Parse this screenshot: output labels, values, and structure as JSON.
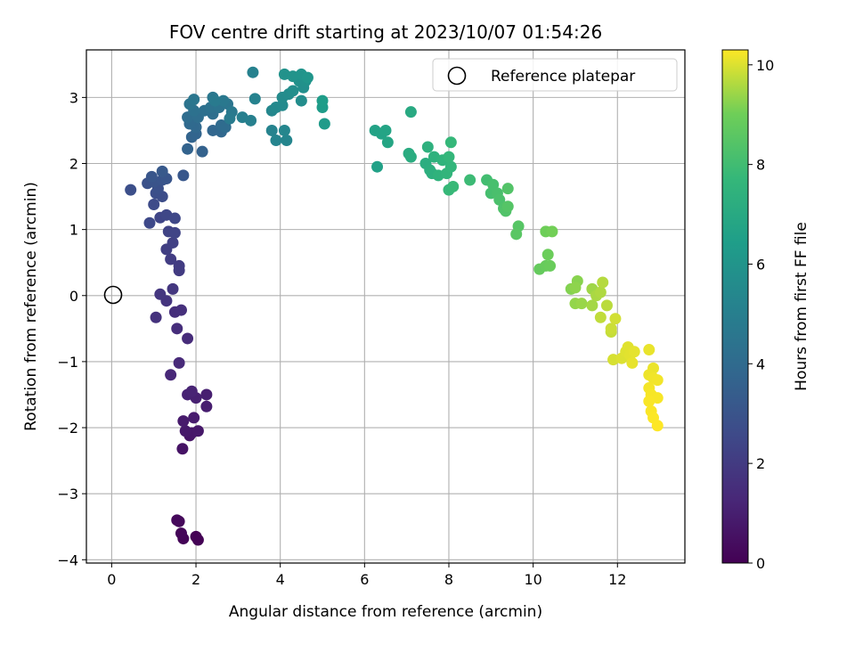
{
  "chart_data": {
    "type": "scatter",
    "title": "FOV centre drift starting at 2023/10/07 01:54:26",
    "xlabel": "Angular distance from reference (arcmin)",
    "ylabel": "Rotation from reference (arcmin)",
    "xlim": [
      -0.6,
      13.6
    ],
    "ylim": [
      -4.05,
      3.72
    ],
    "x_ticks": [
      0,
      2,
      4,
      6,
      8,
      10,
      12
    ],
    "y_ticks": [
      -4,
      -3,
      -2,
      -1,
      0,
      1,
      2,
      3
    ],
    "x_tick_labels": [
      "0",
      "2",
      "4",
      "6",
      "8",
      "10",
      "12"
    ],
    "y_tick_labels": [
      "−4",
      "−3",
      "−2",
      "−1",
      "0",
      "1",
      "2",
      "3"
    ],
    "grid": true,
    "legend": {
      "placement": "top-right",
      "entries": [
        "Reference platepar"
      ]
    },
    "reference_point": {
      "label": "Reference platepar",
      "x": 0,
      "y": 0,
      "marker": "open-circle"
    },
    "colorbar": {
      "label": "Hours from first FF file",
      "colormap": "viridis",
      "range": [
        0,
        10.3
      ],
      "ticks": [
        0,
        2,
        4,
        6,
        8,
        10
      ],
      "tick_labels": [
        "0",
        "2",
        "4",
        "6",
        "8",
        "10"
      ]
    },
    "points": [
      {
        "x": 2.0,
        "y": -3.65,
        "c": 0.0
      },
      {
        "x": 2.05,
        "y": -3.7,
        "c": 0.05
      },
      {
        "x": 1.7,
        "y": -3.68,
        "c": 0.1
      },
      {
        "x": 1.65,
        "y": -3.6,
        "c": 0.15
      },
      {
        "x": 1.6,
        "y": -3.42,
        "c": 0.2
      },
      {
        "x": 1.55,
        "y": -3.4,
        "c": 0.25
      },
      {
        "x": 1.68,
        "y": -2.32,
        "c": 0.6
      },
      {
        "x": 1.85,
        "y": -2.12,
        "c": 0.65
      },
      {
        "x": 1.9,
        "y": -2.08,
        "c": 0.7
      },
      {
        "x": 2.05,
        "y": -2.05,
        "c": 0.75
      },
      {
        "x": 1.75,
        "y": -2.05,
        "c": 0.8
      },
      {
        "x": 1.7,
        "y": -1.9,
        "c": 0.85
      },
      {
        "x": 1.95,
        "y": -1.85,
        "c": 0.9
      },
      {
        "x": 2.25,
        "y": -1.68,
        "c": 0.95
      },
      {
        "x": 2.25,
        "y": -1.5,
        "c": 1.0
      },
      {
        "x": 2.0,
        "y": -1.55,
        "c": 1.05
      },
      {
        "x": 1.8,
        "y": -1.5,
        "c": 1.1
      },
      {
        "x": 1.9,
        "y": -1.45,
        "c": 1.15
      },
      {
        "x": 1.4,
        "y": -1.2,
        "c": 1.3
      },
      {
        "x": 1.6,
        "y": -1.02,
        "c": 1.35
      },
      {
        "x": 1.8,
        "y": -0.65,
        "c": 1.45
      },
      {
        "x": 1.55,
        "y": -0.5,
        "c": 1.5
      },
      {
        "x": 1.5,
        "y": -0.25,
        "c": 1.55
      },
      {
        "x": 1.65,
        "y": -0.22,
        "c": 1.6
      },
      {
        "x": 1.05,
        "y": -0.33,
        "c": 1.65
      },
      {
        "x": 1.3,
        "y": -0.08,
        "c": 1.75
      },
      {
        "x": 1.15,
        "y": 0.02,
        "c": 1.8
      },
      {
        "x": 1.45,
        "y": 0.1,
        "c": 1.85
      },
      {
        "x": 1.6,
        "y": 0.38,
        "c": 2.0
      },
      {
        "x": 1.6,
        "y": 0.45,
        "c": 2.05
      },
      {
        "x": 1.4,
        "y": 0.55,
        "c": 2.1
      },
      {
        "x": 1.3,
        "y": 0.7,
        "c": 2.15
      },
      {
        "x": 1.45,
        "y": 0.8,
        "c": 2.2
      },
      {
        "x": 1.35,
        "y": 0.97,
        "c": 2.3
      },
      {
        "x": 1.5,
        "y": 0.95,
        "c": 2.35
      },
      {
        "x": 1.15,
        "y": 1.18,
        "c": 2.4
      },
      {
        "x": 1.3,
        "y": 1.22,
        "c": 2.45
      },
      {
        "x": 1.5,
        "y": 1.17,
        "c": 2.5
      },
      {
        "x": 0.9,
        "y": 1.1,
        "c": 2.55
      },
      {
        "x": 1.0,
        "y": 1.38,
        "c": 2.6
      },
      {
        "x": 1.2,
        "y": 1.5,
        "c": 2.7
      },
      {
        "x": 1.05,
        "y": 1.55,
        "c": 2.75
      },
      {
        "x": 0.45,
        "y": 1.6,
        "c": 2.8
      },
      {
        "x": 1.1,
        "y": 1.62,
        "c": 2.85
      },
      {
        "x": 0.85,
        "y": 1.7,
        "c": 2.9
      },
      {
        "x": 1.0,
        "y": 1.72,
        "c": 2.95
      },
      {
        "x": 1.2,
        "y": 1.75,
        "c": 3.0
      },
      {
        "x": 1.3,
        "y": 1.77,
        "c": 3.05
      },
      {
        "x": 0.95,
        "y": 1.8,
        "c": 3.1
      },
      {
        "x": 1.7,
        "y": 1.82,
        "c": 3.15
      },
      {
        "x": 1.2,
        "y": 1.88,
        "c": 3.2
      },
      {
        "x": 2.15,
        "y": 2.18,
        "c": 3.6
      },
      {
        "x": 1.8,
        "y": 2.22,
        "c": 3.65
      },
      {
        "x": 1.9,
        "y": 2.4,
        "c": 3.7
      },
      {
        "x": 2.0,
        "y": 2.45,
        "c": 3.75
      },
      {
        "x": 2.4,
        "y": 2.5,
        "c": 3.8
      },
      {
        "x": 2.6,
        "y": 2.48,
        "c": 3.85
      },
      {
        "x": 2.0,
        "y": 2.55,
        "c": 3.9
      },
      {
        "x": 1.85,
        "y": 2.6,
        "c": 3.95
      },
      {
        "x": 2.6,
        "y": 2.58,
        "c": 4.0
      },
      {
        "x": 2.7,
        "y": 2.55,
        "c": 4.05
      },
      {
        "x": 1.8,
        "y": 2.7,
        "c": 4.1
      },
      {
        "x": 2.05,
        "y": 2.7,
        "c": 4.15
      },
      {
        "x": 2.4,
        "y": 2.75,
        "c": 4.2
      },
      {
        "x": 2.2,
        "y": 2.8,
        "c": 4.25
      },
      {
        "x": 1.95,
        "y": 2.8,
        "c": 4.3
      },
      {
        "x": 2.35,
        "y": 2.85,
        "c": 4.35
      },
      {
        "x": 2.55,
        "y": 2.85,
        "c": 4.4
      },
      {
        "x": 1.85,
        "y": 2.9,
        "c": 4.45
      },
      {
        "x": 2.75,
        "y": 2.9,
        "c": 4.5
      },
      {
        "x": 1.95,
        "y": 2.97,
        "c": 4.55
      },
      {
        "x": 2.4,
        "y": 3.0,
        "c": 4.6
      },
      {
        "x": 2.65,
        "y": 2.95,
        "c": 4.65
      },
      {
        "x": 2.85,
        "y": 2.78,
        "c": 4.7
      },
      {
        "x": 2.45,
        "y": 2.95,
        "c": 4.75
      },
      {
        "x": 2.8,
        "y": 2.68,
        "c": 4.8
      },
      {
        "x": 3.1,
        "y": 2.7,
        "c": 5.0
      },
      {
        "x": 3.3,
        "y": 2.65,
        "c": 5.05
      },
      {
        "x": 3.35,
        "y": 3.38,
        "c": 5.1
      },
      {
        "x": 3.4,
        "y": 2.98,
        "c": 5.15
      },
      {
        "x": 3.8,
        "y": 2.5,
        "c": 5.2
      },
      {
        "x": 3.9,
        "y": 2.35,
        "c": 5.25
      },
      {
        "x": 4.15,
        "y": 2.35,
        "c": 5.3
      },
      {
        "x": 4.1,
        "y": 2.5,
        "c": 5.35
      },
      {
        "x": 3.8,
        "y": 2.8,
        "c": 5.4
      },
      {
        "x": 3.9,
        "y": 2.85,
        "c": 5.45
      },
      {
        "x": 4.05,
        "y": 2.88,
        "c": 5.5
      },
      {
        "x": 4.05,
        "y": 3.0,
        "c": 5.55
      },
      {
        "x": 4.2,
        "y": 3.05,
        "c": 5.6
      },
      {
        "x": 4.5,
        "y": 2.95,
        "c": 5.65
      },
      {
        "x": 4.3,
        "y": 3.1,
        "c": 5.7
      },
      {
        "x": 4.55,
        "y": 3.15,
        "c": 5.75
      },
      {
        "x": 4.45,
        "y": 3.25,
        "c": 5.8
      },
      {
        "x": 4.6,
        "y": 3.25,
        "c": 5.85
      },
      {
        "x": 4.1,
        "y": 3.35,
        "c": 5.9
      },
      {
        "x": 4.3,
        "y": 3.32,
        "c": 5.95
      },
      {
        "x": 4.5,
        "y": 3.35,
        "c": 6.0
      },
      {
        "x": 4.65,
        "y": 3.3,
        "c": 6.05
      },
      {
        "x": 5.05,
        "y": 2.6,
        "c": 6.3
      },
      {
        "x": 5.0,
        "y": 2.85,
        "c": 6.35
      },
      {
        "x": 5.0,
        "y": 2.95,
        "c": 6.4
      },
      {
        "x": 6.3,
        "y": 1.95,
        "c": 6.6
      },
      {
        "x": 6.25,
        "y": 2.5,
        "c": 6.65
      },
      {
        "x": 6.4,
        "y": 2.45,
        "c": 6.7
      },
      {
        "x": 6.5,
        "y": 2.5,
        "c": 6.75
      },
      {
        "x": 6.55,
        "y": 2.32,
        "c": 6.8
      },
      {
        "x": 7.1,
        "y": 2.78,
        "c": 7.0
      },
      {
        "x": 7.05,
        "y": 2.15,
        "c": 7.1
      },
      {
        "x": 7.1,
        "y": 2.1,
        "c": 7.15
      },
      {
        "x": 7.45,
        "y": 2.0,
        "c": 7.2
      },
      {
        "x": 7.55,
        "y": 1.9,
        "c": 7.25
      },
      {
        "x": 7.6,
        "y": 1.85,
        "c": 7.3
      },
      {
        "x": 7.5,
        "y": 2.25,
        "c": 7.35
      },
      {
        "x": 7.65,
        "y": 2.1,
        "c": 7.4
      },
      {
        "x": 7.75,
        "y": 1.82,
        "c": 7.45
      },
      {
        "x": 7.85,
        "y": 2.05,
        "c": 7.5
      },
      {
        "x": 7.95,
        "y": 1.85,
        "c": 7.55
      },
      {
        "x": 8.05,
        "y": 1.95,
        "c": 7.6
      },
      {
        "x": 8.0,
        "y": 2.1,
        "c": 7.65
      },
      {
        "x": 8.05,
        "y": 2.32,
        "c": 7.7
      },
      {
        "x": 8.0,
        "y": 1.6,
        "c": 7.75
      },
      {
        "x": 8.1,
        "y": 1.65,
        "c": 7.8
      },
      {
        "x": 8.5,
        "y": 1.75,
        "c": 7.9
      },
      {
        "x": 8.9,
        "y": 1.75,
        "c": 8.05
      },
      {
        "x": 9.0,
        "y": 1.55,
        "c": 8.1
      },
      {
        "x": 9.05,
        "y": 1.68,
        "c": 8.15
      },
      {
        "x": 9.15,
        "y": 1.55,
        "c": 8.2
      },
      {
        "x": 9.2,
        "y": 1.45,
        "c": 8.25
      },
      {
        "x": 9.3,
        "y": 1.32,
        "c": 8.3
      },
      {
        "x": 9.35,
        "y": 1.28,
        "c": 8.35
      },
      {
        "x": 9.4,
        "y": 1.62,
        "c": 8.4
      },
      {
        "x": 9.4,
        "y": 1.35,
        "c": 8.45
      },
      {
        "x": 9.65,
        "y": 1.05,
        "c": 8.5
      },
      {
        "x": 9.6,
        "y": 0.93,
        "c": 8.55
      },
      {
        "x": 10.15,
        "y": 0.4,
        "c": 8.8
      },
      {
        "x": 10.3,
        "y": 0.45,
        "c": 8.85
      },
      {
        "x": 10.4,
        "y": 0.45,
        "c": 8.9
      },
      {
        "x": 10.35,
        "y": 0.62,
        "c": 8.95
      },
      {
        "x": 10.3,
        "y": 0.97,
        "c": 9.0
      },
      {
        "x": 10.45,
        "y": 0.97,
        "c": 9.05
      },
      {
        "x": 10.9,
        "y": 0.1,
        "c": 9.2
      },
      {
        "x": 11.05,
        "y": 0.22,
        "c": 9.25
      },
      {
        "x": 11.0,
        "y": 0.12,
        "c": 9.3
      },
      {
        "x": 11.0,
        "y": -0.12,
        "c": 9.35
      },
      {
        "x": 11.15,
        "y": -0.12,
        "c": 9.4
      },
      {
        "x": 11.4,
        "y": 0.1,
        "c": 9.45
      },
      {
        "x": 11.4,
        "y": -0.15,
        "c": 9.5
      },
      {
        "x": 11.5,
        "y": 0.0,
        "c": 9.55
      },
      {
        "x": 11.6,
        "y": 0.05,
        "c": 9.6
      },
      {
        "x": 11.65,
        "y": 0.2,
        "c": 9.65
      },
      {
        "x": 11.75,
        "y": -0.15,
        "c": 9.7
      },
      {
        "x": 11.6,
        "y": -0.33,
        "c": 9.75
      },
      {
        "x": 11.85,
        "y": -0.55,
        "c": 9.8
      },
      {
        "x": 11.85,
        "y": -0.5,
        "c": 9.85
      },
      {
        "x": 11.95,
        "y": -0.35,
        "c": 9.9
      },
      {
        "x": 11.9,
        "y": -0.97,
        "c": 9.95
      },
      {
        "x": 12.1,
        "y": -0.95,
        "c": 10.0
      },
      {
        "x": 12.2,
        "y": -0.85,
        "c": 10.02
      },
      {
        "x": 12.25,
        "y": -0.78,
        "c": 10.04
      },
      {
        "x": 12.3,
        "y": -0.9,
        "c": 10.06
      },
      {
        "x": 12.4,
        "y": -0.85,
        "c": 10.08
      },
      {
        "x": 12.35,
        "y": -1.02,
        "c": 10.1
      },
      {
        "x": 12.75,
        "y": -0.82,
        "c": 10.12
      },
      {
        "x": 12.85,
        "y": -1.1,
        "c": 10.14
      },
      {
        "x": 12.75,
        "y": -1.2,
        "c": 10.16
      },
      {
        "x": 12.85,
        "y": -1.25,
        "c": 10.18
      },
      {
        "x": 12.95,
        "y": -1.28,
        "c": 10.2
      },
      {
        "x": 12.75,
        "y": -1.4,
        "c": 10.22
      },
      {
        "x": 12.8,
        "y": -1.5,
        "c": 10.24
      },
      {
        "x": 12.95,
        "y": -1.55,
        "c": 10.25
      },
      {
        "x": 12.75,
        "y": -1.6,
        "c": 10.26
      },
      {
        "x": 12.8,
        "y": -1.75,
        "c": 10.27
      },
      {
        "x": 12.85,
        "y": -1.85,
        "c": 10.28
      },
      {
        "x": 12.95,
        "y": -1.97,
        "c": 10.3
      }
    ]
  }
}
